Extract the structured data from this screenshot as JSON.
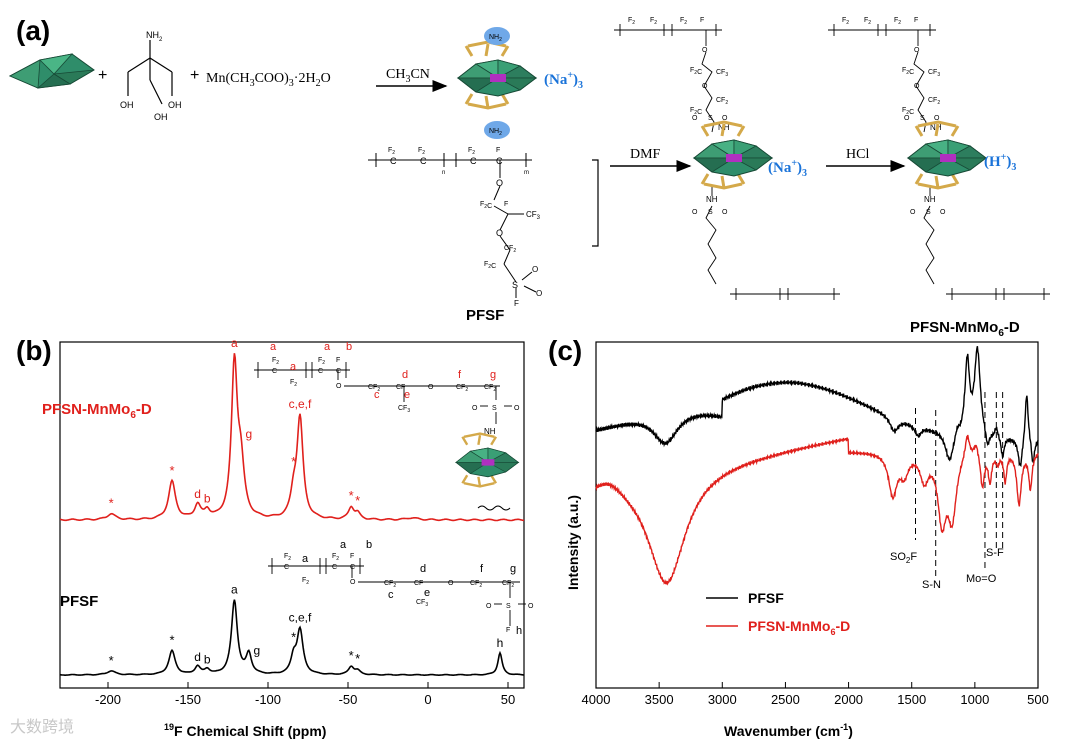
{
  "panels": {
    "a": {
      "label": "(a)",
      "reagents": {
        "plus1": "+",
        "plus2": "+",
        "tris_nh2": "NH",
        "tris_nh2_sub": "2",
        "tris_oh1": "OH",
        "tris_oh2": "OH",
        "tris_oh3": "OH",
        "mn_salt_a": "Mn(CH",
        "mn_salt_sub1": "3",
        "mn_salt_b": "COO)",
        "mn_salt_sub2": "3",
        "mn_salt_c": "·2H",
        "mn_salt_sub3": "2",
        "mn_salt_d": "O"
      },
      "arrows": {
        "solvent1": "CH",
        "solvent1_sub": "3",
        "solvent1_b": "CN",
        "solvent2": "DMF",
        "solvent3": "HCl"
      },
      "cluster_nh2_top": "NH",
      "cluster_nh2_bottom": "NH",
      "counter_na1_a": "(Na",
      "counter_na1_sup": "+",
      "counter_na1_b": ")",
      "counter_na1_sub": "3",
      "counter_na2_a": "(Na",
      "counter_na2_sup": "+",
      "counter_na2_b": ")",
      "counter_na2_sub": "3",
      "counter_h_a": "(H",
      "counter_h_sup": "+",
      "counter_h_b": ")",
      "counter_h_sub": "3",
      "pfsf_label": "PFSF",
      "pfsn_label_a": "PFSN-MnMo",
      "pfsn_label_sub": "6",
      "pfsn_label_b": "-D",
      "pfsf_struct": {
        "f2": "F",
        "c": "C",
        "f": "F",
        "o": "O",
        "cf3": "CF",
        "s": "S",
        "n_sub": "n",
        "m_sub": "m"
      },
      "pfsn_struct": {
        "nh": "NH",
        "o": "O",
        "s": "S"
      }
    },
    "b": {
      "label": "(b)",
      "series_top": "PFSN-MnMo",
      "series_top_sub": "6",
      "series_top_b": "-D",
      "series_bottom": "PFSF",
      "xlabel_sup": "19",
      "xlabel": "F Chemical Shift (ppm)",
      "peak_labels_top": [
        "*",
        "*",
        "d",
        "b",
        "a",
        "g",
        "*",
        "c,e,f",
        "*",
        "*"
      ],
      "peak_labels_bottom": [
        "*",
        "*",
        "d",
        "b",
        "a",
        "g",
        "*",
        "c,e,f",
        "*",
        "*",
        "h"
      ],
      "struct_top": {
        "a1": "a",
        "a2": "a",
        "a3": "a",
        "b": "b",
        "c": "c",
        "d": "d",
        "e": "e",
        "f": "f",
        "g": "g",
        "nh": "NH"
      },
      "struct_bottom": {
        "a1": "a",
        "a2": "a",
        "b": "b",
        "c": "c",
        "d": "d",
        "e": "e",
        "f": "f",
        "g": "g",
        "h": "h"
      }
    },
    "c": {
      "label": "(c)",
      "xlabel": "Wavenumber (cm",
      "xlabel_sup": "-1",
      "xlabel_end": ")",
      "ylabel": "Intensity (a.u.)",
      "legend": [
        {
          "name": "PFSF",
          "color": "#000000"
        },
        {
          "name": "PFSN-MnMo",
          "sub": "6",
          "end": "-D",
          "color": "#e0201c"
        }
      ],
      "annotations": [
        {
          "a": "SO",
          "sub": "2",
          "b": "F"
        },
        {
          "a": "S-N"
        },
        {
          "a": "Mo=O"
        },
        {
          "a": "S-F"
        }
      ]
    }
  },
  "watermark": "大数跨境",
  "colors": {
    "red": "#e0201c",
    "blue": "#1a73d9",
    "green": "#3aa37a",
    "gold": "#d4a94a",
    "magenta": "#b030c0"
  },
  "chart_data": [
    {
      "type": "line",
      "xlabel": "19F Chemical Shift (ppm)",
      "ylabel": "",
      "xlim": [
        -230,
        60
      ],
      "x_ticks": [
        -200,
        -150,
        -100,
        -50,
        0,
        50
      ],
      "series": [
        {
          "name": "PFSN-MnMo6-D",
          "color": "#e0201c",
          "peaks": [
            {
              "x": -198,
              "label": "*"
            },
            {
              "x": -160,
              "label": "*"
            },
            {
              "x": -144,
              "label": "d"
            },
            {
              "x": -138,
              "label": "b"
            },
            {
              "x": -121,
              "label": "a"
            },
            {
              "x": -117,
              "label": "g"
            },
            {
              "x": -84,
              "label": "*"
            },
            {
              "x": -80,
              "label": "c,e,f"
            },
            {
              "x": -48,
              "label": "*"
            },
            {
              "x": -44,
              "label": "*"
            }
          ]
        },
        {
          "name": "PFSF",
          "color": "#000000",
          "peaks": [
            {
              "x": -198,
              "label": "*"
            },
            {
              "x": -160,
              "label": "*"
            },
            {
              "x": -144,
              "label": "d"
            },
            {
              "x": -138,
              "label": "b"
            },
            {
              "x": -121,
              "label": "a"
            },
            {
              "x": -112,
              "label": "g"
            },
            {
              "x": -84,
              "label": "*"
            },
            {
              "x": -80,
              "label": "c,e,f"
            },
            {
              "x": -48,
              "label": "*"
            },
            {
              "x": -44,
              "label": "*"
            },
            {
              "x": 45,
              "label": "h"
            }
          ]
        }
      ]
    },
    {
      "type": "line",
      "xlabel": "Wavenumber (cm-1)",
      "ylabel": "Intensity (a.u.)",
      "xlim": [
        4000,
        500
      ],
      "x_ticks": [
        4000,
        3500,
        3000,
        2500,
        2000,
        1500,
        1000,
        500
      ],
      "reference_lines": [
        1470,
        1310,
        920,
        830,
        780
      ],
      "series": [
        {
          "name": "PFSF",
          "color": "#000000"
        },
        {
          "name": "PFSN-MnMo6-D",
          "color": "#e0201c"
        }
      ]
    }
  ]
}
